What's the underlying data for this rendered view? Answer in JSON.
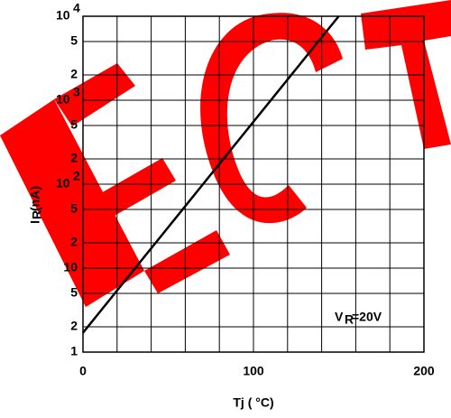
{
  "chart_data": {
    "type": "line",
    "log_y": true,
    "grid": true,
    "x_label": "Tj ( °C)",
    "y_label": [
      "I",
      "R",
      " (nA)"
    ],
    "annotation": [
      "V",
      "R",
      "=20V"
    ],
    "xlim": [
      0,
      200
    ],
    "xticks": [
      0,
      100,
      200
    ],
    "xgrid": [
      0,
      20,
      40,
      60,
      80,
      100,
      120,
      140,
      160,
      180,
      200
    ],
    "ylim": [
      1,
      10000
    ],
    "yticks": [
      1,
      2,
      5,
      10,
      {
        "value": 20,
        "label": "2"
      },
      {
        "value": 50,
        "label": "5"
      },
      {
        "value": 100,
        "label": "10",
        "exponent": "2"
      },
      {
        "value": 200,
        "label": "2"
      },
      {
        "value": 500,
        "label": "5"
      },
      {
        "value": 1000,
        "label": "10",
        "exponent": "3"
      },
      {
        "value": 2000,
        "label": "2"
      },
      {
        "value": 5000,
        "label": "5"
      },
      {
        "value": 10000,
        "label": "10",
        "exponent": "4"
      }
    ],
    "series": [
      {
        "color": "#000000",
        "x": [
          0,
          150
        ],
        "values": [
          1.7,
          10000
        ]
      }
    ]
  }
}
